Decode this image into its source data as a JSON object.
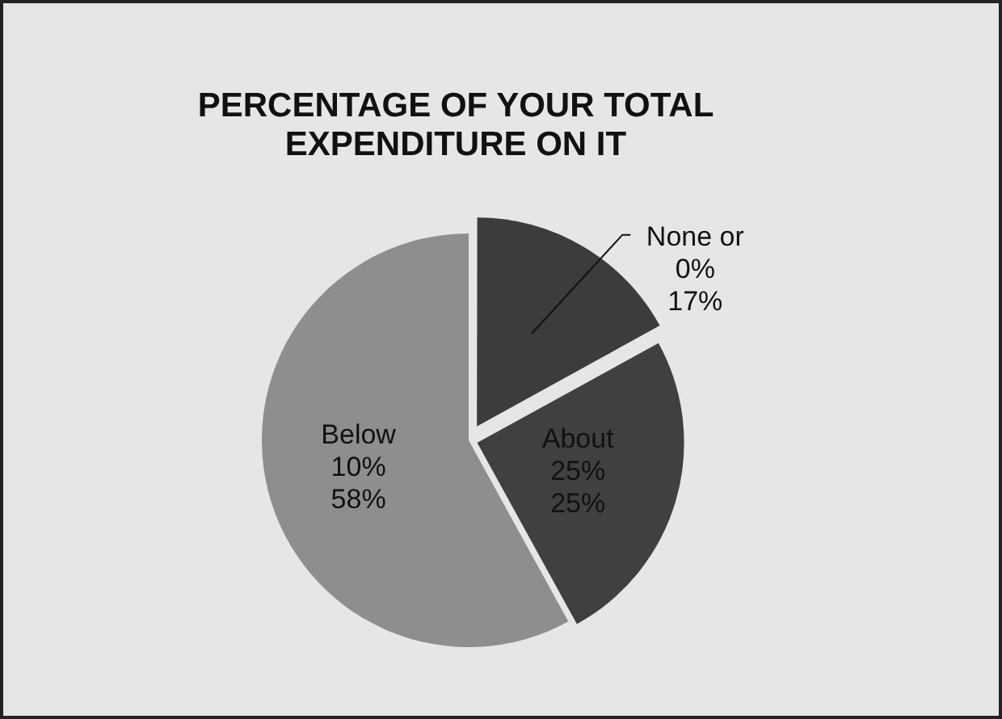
{
  "chart_data": {
    "type": "pie",
    "title": "PERCENTAGE OF YOUR TOTAL EXPENDITURE ON IT",
    "categories": [
      "None or 0%",
      "About 25%",
      "Below 10%"
    ],
    "values": [
      17,
      25,
      58
    ],
    "colors": [
      "#3c3c3c",
      "#404040",
      "#8e8e8e"
    ],
    "value_labels": [
      "17%",
      "25%",
      "58%"
    ],
    "legend": false
  }
}
